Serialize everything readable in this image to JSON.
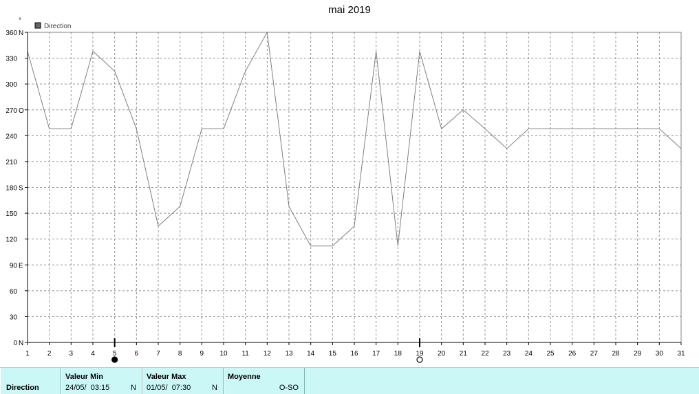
{
  "chart_data": {
    "type": "line",
    "title": "mai 2019",
    "ylabel": "°",
    "legend": "Direction",
    "legend_placement": "top-left",
    "grid": true,
    "xlim": [
      1,
      31
    ],
    "ylim": [
      0,
      360
    ],
    "x_ticks": [
      "1",
      "2",
      "3",
      "4",
      "5",
      "6",
      "7",
      "8",
      "9",
      "10",
      "11",
      "12",
      "13",
      "14",
      "15",
      "16",
      "17",
      "18",
      "19",
      "20",
      "21",
      "22",
      "23",
      "24",
      "25",
      "26",
      "27",
      "28",
      "29",
      "30",
      "31"
    ],
    "y_ticks": [
      {
        "value": 0,
        "label": "0",
        "cardinal": "N"
      },
      {
        "value": 30,
        "label": "30",
        "cardinal": ""
      },
      {
        "value": 60,
        "label": "60",
        "cardinal": ""
      },
      {
        "value": 90,
        "label": "90",
        "cardinal": "E"
      },
      {
        "value": 120,
        "label": "120",
        "cardinal": ""
      },
      {
        "value": 150,
        "label": "150",
        "cardinal": ""
      },
      {
        "value": 180,
        "label": "180",
        "cardinal": "S"
      },
      {
        "value": 210,
        "label": "210",
        "cardinal": ""
      },
      {
        "value": 240,
        "label": "240",
        "cardinal": ""
      },
      {
        "value": 270,
        "label": "270",
        "cardinal": "O"
      },
      {
        "value": 300,
        "label": "300",
        "cardinal": ""
      },
      {
        "value": 330,
        "label": "330",
        "cardinal": ""
      },
      {
        "value": 360,
        "label": "360",
        "cardinal": "N"
      }
    ],
    "series": [
      {
        "name": "Direction",
        "color": "#808080",
        "x": [
          1,
          2,
          3,
          4,
          5,
          6,
          7,
          8,
          9,
          10,
          11,
          12,
          13,
          14,
          15,
          16,
          17,
          18,
          19,
          20,
          21,
          22,
          23,
          24,
          25,
          26,
          27,
          28,
          29,
          30,
          31
        ],
        "values": [
          338,
          248,
          248,
          338,
          315,
          248,
          135,
          158,
          248,
          248,
          315,
          360,
          158,
          112,
          112,
          135,
          338,
          112,
          338,
          248,
          270,
          248,
          225,
          248,
          248,
          248,
          248,
          248,
          248,
          248,
          225
        ]
      }
    ],
    "moon_markers": [
      {
        "day": 5,
        "phase": "new-moon"
      },
      {
        "day": 19,
        "phase": "full-moon"
      }
    ]
  },
  "stats": {
    "row_label": "Direction",
    "min": {
      "header": "Valeur Min",
      "date": "24/05/  03:15",
      "direction": "N"
    },
    "max": {
      "header": "Valeur Max",
      "date": "01/05/  07:30",
      "direction": "N"
    },
    "avg": {
      "header": "Moyenne",
      "direction": "O-SO"
    }
  }
}
